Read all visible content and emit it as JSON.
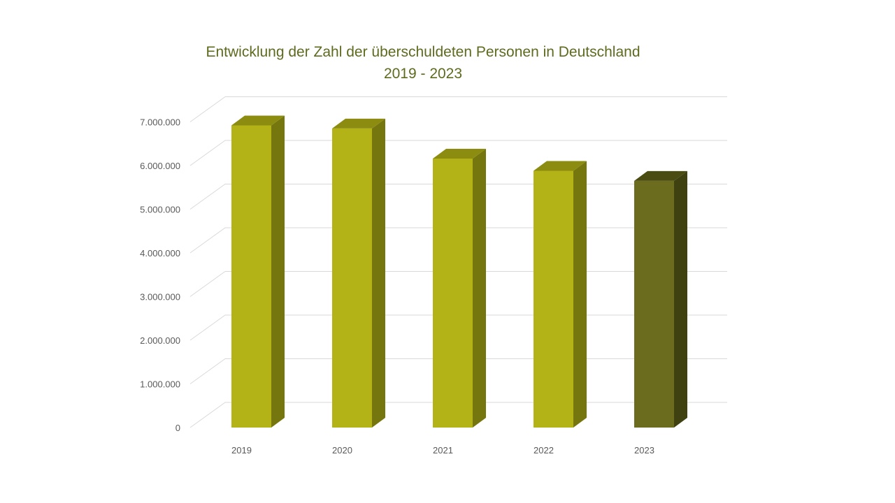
{
  "chart_data": {
    "type": "bar",
    "title_lines": [
      "Entwicklung der Zahl der überschuldeten Personen in Deutschland",
      "2019 - 2023"
    ],
    "categories": [
      "2019",
      "2020",
      "2021",
      "2022",
      "2023"
    ],
    "values": [
      6920000,
      6850000,
      6160000,
      5880000,
      5650000
    ],
    "ylim": [
      0,
      7000000
    ],
    "yticks": [
      0,
      1000000,
      2000000,
      3000000,
      4000000,
      5000000,
      6000000,
      7000000
    ],
    "ytick_labels": [
      "0",
      "1.000.000",
      "2.000.000",
      "3.000.000",
      "4.000.000",
      "5.000.000",
      "6.000.000",
      "7.000.000"
    ],
    "grid": true,
    "three_d": true,
    "colors": {
      "bar_front": "#b3b216",
      "bar_side": "#75760d",
      "bar_top": "#8c8c10",
      "highlight_front": "#6b6c1e",
      "highlight_side": "#3f4210",
      "highlight_top": "#4a4c12",
      "title": "#5f6a1f",
      "grid": "#d9d9d9"
    },
    "highlight_index": 4
  }
}
